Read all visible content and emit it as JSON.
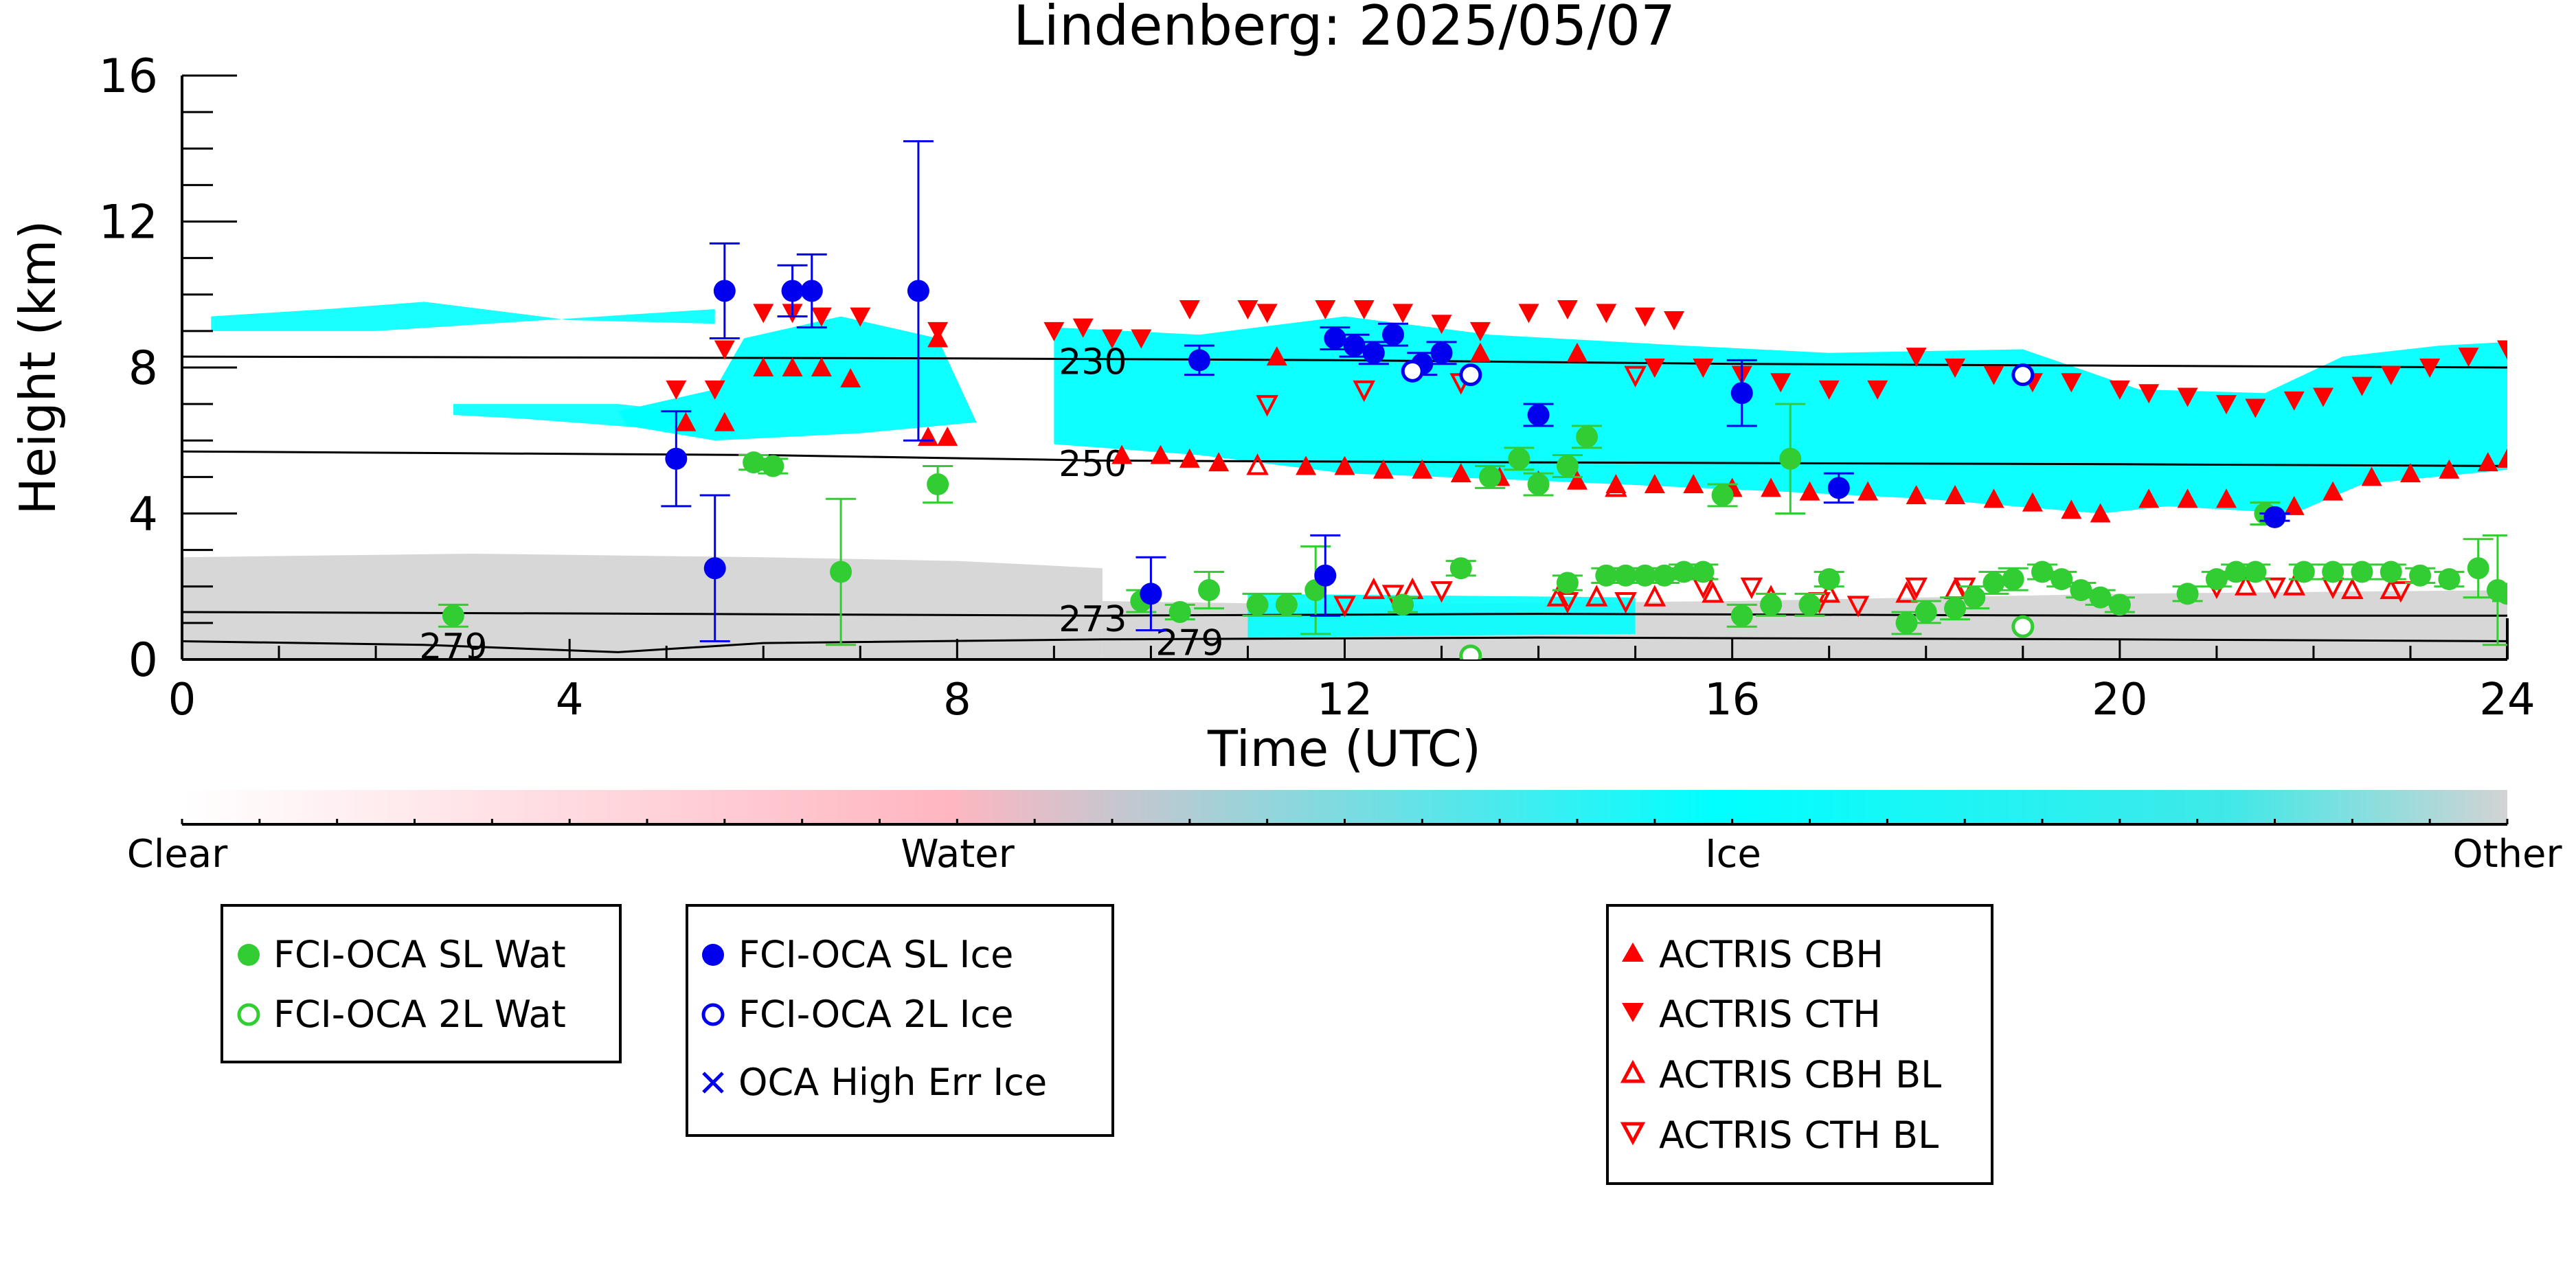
{
  "chart_data": {
    "type": "scatter",
    "title": "Lindenberg: 2025/05/07",
    "xlabel": "Time (UTC)",
    "ylabel": "Height (km)",
    "xlim": [
      0,
      24
    ],
    "ylim": [
      0,
      16
    ],
    "xticks": [
      "0",
      "4",
      "8",
      "12",
      "16",
      "20",
      "24"
    ],
    "yticks": [
      "0",
      "4",
      "8",
      "12",
      "16"
    ],
    "colorbar": {
      "labels": [
        "Clear",
        "Water",
        "Ice",
        "Other"
      ],
      "colors": [
        "#ffffff",
        "#ffb6c1",
        "#00ffff",
        "#d3d3d3"
      ]
    },
    "contours": [
      {
        "label": "230",
        "points": [
          [
            0,
            8.3
          ],
          [
            8,
            8.25
          ],
          [
            12,
            8.2
          ],
          [
            16,
            8.1
          ],
          [
            20,
            8.05
          ],
          [
            24,
            8.0
          ]
        ]
      },
      {
        "label": "250",
        "points": [
          [
            0,
            5.7
          ],
          [
            6,
            5.6
          ],
          [
            9.5,
            5.45
          ],
          [
            14,
            5.4
          ],
          [
            20,
            5.35
          ],
          [
            24,
            5.3
          ]
        ]
      },
      {
        "label": "273",
        "points": [
          [
            0,
            1.3
          ],
          [
            5,
            1.25
          ],
          [
            9.5,
            1.2
          ],
          [
            14,
            1.25
          ],
          [
            20,
            1.2
          ],
          [
            24,
            1.2
          ]
        ]
      },
      {
        "label": "279",
        "points": [
          [
            0,
            0.5
          ],
          [
            2.5,
            0.4
          ],
          [
            4.5,
            0.2
          ],
          [
            6,
            0.45
          ],
          [
            9.5,
            0.55
          ],
          [
            14,
            0.6
          ],
          [
            20,
            0.55
          ],
          [
            24,
            0.5
          ]
        ]
      }
    ],
    "legend": {
      "box1": [
        "FCI-OCA SL Wat",
        "FCI-OCA 2L Wat"
      ],
      "box2": [
        "FCI-OCA SL Ice",
        "FCI-OCA 2L Ice",
        "OCA High Err Ice"
      ],
      "box3": [
        "ACTRIS CBH",
        "ACTRIS CTH",
        "ACTRIS CBH BL",
        "ACTRIS CTH BL"
      ]
    },
    "colors": {
      "water": "#32cd32",
      "ice": "#0000ee",
      "actris": "#ff0000"
    },
    "series": [
      {
        "name": "FCI-OCA SL Wat",
        "points": [
          [
            2.8,
            1.2,
            0.3
          ],
          [
            5.9,
            5.4,
            0.2
          ],
          [
            6.1,
            5.3,
            0.2
          ],
          [
            6.8,
            2.4,
            2.0
          ],
          [
            7.8,
            4.8,
            0.5
          ],
          [
            9.9,
            1.6,
            0.3
          ],
          [
            10.3,
            1.3,
            0.2
          ],
          [
            10.6,
            1.9,
            0.5
          ],
          [
            11.1,
            1.5,
            0.3
          ],
          [
            11.4,
            1.5,
            0.3
          ],
          [
            11.7,
            1.9,
            1.2
          ],
          [
            12.6,
            1.5,
            0.2
          ],
          [
            13.2,
            2.5,
            0.2
          ],
          [
            13.5,
            5.0,
            0.3
          ],
          [
            13.8,
            5.5,
            0.3
          ],
          [
            14.0,
            4.8,
            0.3
          ],
          [
            14.3,
            5.3,
            0.3
          ],
          [
            14.5,
            6.1,
            0.3
          ],
          [
            14.3,
            2.1,
            0.2
          ],
          [
            14.7,
            2.3,
            0.2
          ],
          [
            14.9,
            2.3,
            0.2
          ],
          [
            15.1,
            2.3,
            0.2
          ],
          [
            15.3,
            2.3,
            0.2
          ],
          [
            15.5,
            2.4,
            0.2
          ],
          [
            15.7,
            2.4,
            0.2
          ],
          [
            15.9,
            4.5,
            0.3
          ],
          [
            16.1,
            1.2,
            0.3
          ],
          [
            16.4,
            1.5,
            0.3
          ],
          [
            16.6,
            5.5,
            1.5
          ],
          [
            16.8,
            1.5,
            0.3
          ],
          [
            17.0,
            2.2,
            0.2
          ],
          [
            17.8,
            1.0,
            0.3
          ],
          [
            18.0,
            1.3,
            0.3
          ],
          [
            18.3,
            1.4,
            0.3
          ],
          [
            18.5,
            1.7,
            0.3
          ],
          [
            18.7,
            2.1,
            0.3
          ],
          [
            18.9,
            2.2,
            0.3
          ],
          [
            19.2,
            2.4,
            0.2
          ],
          [
            19.4,
            2.2,
            0.2
          ],
          [
            19.6,
            1.9,
            0.2
          ],
          [
            19.8,
            1.7,
            0.2
          ],
          [
            20.0,
            1.5,
            0.2
          ],
          [
            20.7,
            1.8,
            0.2
          ],
          [
            21.0,
            2.2,
            0.2
          ],
          [
            21.2,
            2.4,
            0.2
          ],
          [
            21.4,
            2.4,
            0.2
          ],
          [
            21.5,
            4.0,
            0.3
          ],
          [
            21.9,
            2.4,
            0.2
          ],
          [
            22.2,
            2.4,
            0.2
          ],
          [
            22.5,
            2.4,
            0.2
          ],
          [
            22.8,
            2.4,
            0.2
          ],
          [
            23.1,
            2.3,
            0.2
          ],
          [
            23.4,
            2.2,
            0.2
          ],
          [
            23.7,
            2.5,
            0.8
          ],
          [
            23.9,
            1.9,
            1.5
          ],
          [
            24.0,
            1.8,
            0.2
          ]
        ]
      },
      {
        "name": "FCI-OCA 2L Wat",
        "points": [
          [
            13.3,
            0.1
          ],
          [
            19.0,
            0.9
          ]
        ]
      },
      {
        "name": "FCI-OCA SL Ice",
        "points": [
          [
            5.1,
            5.5,
            1.3
          ],
          [
            5.5,
            2.5,
            2.0
          ],
          [
            5.6,
            10.1,
            1.3
          ],
          [
            6.3,
            10.1,
            0.7
          ],
          [
            6.5,
            10.1,
            1.0
          ],
          [
            7.6,
            10.1,
            4.1
          ],
          [
            10.0,
            1.8,
            1.0
          ],
          [
            10.5,
            8.2,
            0.4
          ],
          [
            11.8,
            2.3,
            1.1
          ],
          [
            11.9,
            8.8,
            0.3
          ],
          [
            12.1,
            8.6,
            0.3
          ],
          [
            12.3,
            8.4,
            0.3
          ],
          [
            12.5,
            8.9,
            0.3
          ],
          [
            12.8,
            8.1,
            0.3
          ],
          [
            13.0,
            8.4,
            0.3
          ],
          [
            14.0,
            6.7,
            0.3
          ],
          [
            16.1,
            7.3,
            0.9
          ],
          [
            17.1,
            4.7,
            0.4
          ],
          [
            21.6,
            3.9,
            0.1
          ]
        ]
      },
      {
        "name": "FCI-OCA 2L Ice",
        "points": [
          [
            12.7,
            7.9
          ],
          [
            13.3,
            7.8
          ],
          [
            19.0,
            7.8
          ]
        ]
      },
      {
        "name": "OCA High Err Ice",
        "points": []
      },
      {
        "name": "ACTRIS CBH",
        "points": [
          [
            5.2,
            6.5
          ],
          [
            5.6,
            6.5
          ],
          [
            6.0,
            8.0
          ],
          [
            6.3,
            8.0
          ],
          [
            6.6,
            8.0
          ],
          [
            6.9,
            7.7
          ],
          [
            7.7,
            6.1
          ],
          [
            7.9,
            6.1
          ],
          [
            7.8,
            8.8
          ],
          [
            9.7,
            5.6
          ],
          [
            10.1,
            5.6
          ],
          [
            10.4,
            5.5
          ],
          [
            10.7,
            5.4
          ],
          [
            11.3,
            8.3
          ],
          [
            11.6,
            5.3
          ],
          [
            12.0,
            5.3
          ],
          [
            12.4,
            5.2
          ],
          [
            12.8,
            5.2
          ],
          [
            13.2,
            5.1
          ],
          [
            13.6,
            5.0
          ],
          [
            14.0,
            4.9
          ],
          [
            14.4,
            4.9
          ],
          [
            14.8,
            4.8
          ],
          [
            15.2,
            4.8
          ],
          [
            15.6,
            4.8
          ],
          [
            16.0,
            4.7
          ],
          [
            16.4,
            4.7
          ],
          [
            16.8,
            4.6
          ],
          [
            17.4,
            4.6
          ],
          [
            17.9,
            4.5
          ],
          [
            18.3,
            4.5
          ],
          [
            18.7,
            4.4
          ],
          [
            19.1,
            4.3
          ],
          [
            19.5,
            4.1
          ],
          [
            19.8,
            4.0
          ],
          [
            20.3,
            4.4
          ],
          [
            20.7,
            4.4
          ],
          [
            21.1,
            4.4
          ],
          [
            21.8,
            4.2
          ],
          [
            22.2,
            4.6
          ],
          [
            22.6,
            5.0
          ],
          [
            23.0,
            5.1
          ],
          [
            23.4,
            5.2
          ],
          [
            23.8,
            5.4
          ],
          [
            24.0,
            5.5
          ],
          [
            13.4,
            8.4
          ],
          [
            14.4,
            8.4
          ]
        ]
      },
      {
        "name": "ACTRIS CTH",
        "points": [
          [
            5.1,
            7.4
          ],
          [
            5.5,
            7.4
          ],
          [
            5.6,
            8.5
          ],
          [
            6.0,
            9.5
          ],
          [
            6.3,
            9.5
          ],
          [
            6.6,
            9.4
          ],
          [
            7.0,
            9.4
          ],
          [
            7.8,
            9.0
          ],
          [
            9.0,
            9.0
          ],
          [
            9.3,
            9.1
          ],
          [
            9.6,
            8.8
          ],
          [
            9.9,
            8.8
          ],
          [
            10.4,
            9.6
          ],
          [
            11.0,
            9.6
          ],
          [
            11.2,
            9.5
          ],
          [
            11.8,
            9.6
          ],
          [
            12.2,
            9.6
          ],
          [
            12.6,
            9.5
          ],
          [
            13.0,
            9.2
          ],
          [
            13.4,
            9.0
          ],
          [
            13.9,
            9.5
          ],
          [
            14.3,
            9.6
          ],
          [
            14.7,
            9.5
          ],
          [
            15.1,
            9.4
          ],
          [
            15.4,
            9.3
          ],
          [
            15.2,
            8.0
          ],
          [
            15.7,
            8.0
          ],
          [
            16.1,
            7.8
          ],
          [
            16.5,
            7.6
          ],
          [
            17.0,
            7.4
          ],
          [
            17.5,
            7.4
          ],
          [
            17.9,
            8.3
          ],
          [
            18.3,
            8.0
          ],
          [
            18.7,
            7.8
          ],
          [
            19.1,
            7.6
          ],
          [
            19.5,
            7.6
          ],
          [
            20.0,
            7.4
          ],
          [
            20.3,
            7.3
          ],
          [
            20.7,
            7.2
          ],
          [
            21.1,
            7.0
          ],
          [
            21.4,
            6.9
          ],
          [
            21.8,
            7.1
          ],
          [
            22.1,
            7.2
          ],
          [
            22.5,
            7.5
          ],
          [
            22.8,
            7.8
          ],
          [
            23.2,
            8.0
          ],
          [
            23.6,
            8.3
          ],
          [
            24.0,
            8.5
          ]
        ]
      },
      {
        "name": "ACTRIS CBH BL",
        "points": [
          [
            12.3,
            1.9
          ],
          [
            12.7,
            1.9
          ],
          [
            14.2,
            1.7
          ],
          [
            14.6,
            1.7
          ],
          [
            15.2,
            1.7
          ],
          [
            15.8,
            1.8
          ],
          [
            16.4,
            1.7
          ],
          [
            17.0,
            1.8
          ],
          [
            17.8,
            1.8
          ],
          [
            18.3,
            1.9
          ],
          [
            21.3,
            2.0
          ],
          [
            21.8,
            2.0
          ],
          [
            22.4,
            1.9
          ],
          [
            22.8,
            1.9
          ],
          [
            11.1,
            5.3
          ],
          [
            14.8,
            4.7
          ]
        ]
      },
      {
        "name": "ACTRIS CTH BL",
        "points": [
          [
            11.2,
            7.0
          ],
          [
            12.2,
            7.4
          ],
          [
            13.2,
            7.6
          ],
          [
            15.0,
            7.8
          ],
          [
            12.0,
            1.5
          ],
          [
            12.5,
            1.8
          ],
          [
            13.0,
            1.9
          ],
          [
            14.3,
            1.6
          ],
          [
            14.9,
            1.6
          ],
          [
            15.7,
            2.0
          ],
          [
            16.2,
            2.0
          ],
          [
            16.9,
            1.6
          ],
          [
            17.3,
            1.5
          ],
          [
            17.9,
            2.0
          ],
          [
            18.4,
            2.0
          ],
          [
            21.0,
            2.0
          ],
          [
            21.6,
            2.0
          ],
          [
            22.2,
            2.0
          ],
          [
            22.9,
            1.9
          ]
        ]
      }
    ]
  }
}
